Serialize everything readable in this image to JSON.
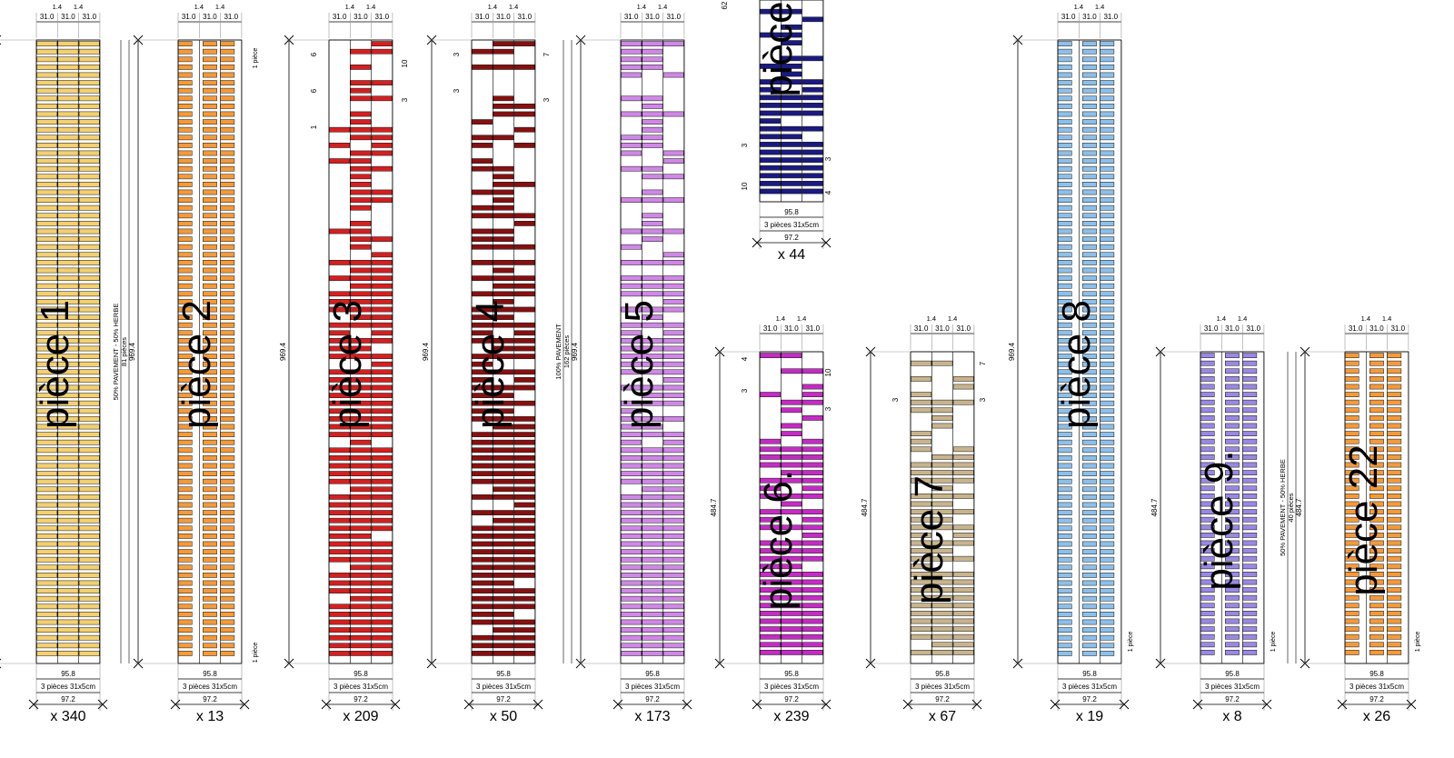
{
  "dimensions": {
    "height_full": "969.4",
    "height_half": "484.7",
    "height_partial": "62",
    "width_inner": "95.8",
    "width_outer": "97.2",
    "column_width": "31.0",
    "joint_width": "1.4",
    "composition": "3 pièces 31x5cm",
    "one_piece": "1 pièce",
    "unit_label": "pièce"
  },
  "notes": {
    "piece_count_162": "162 pièces",
    "piece_count_81": "81 pièces",
    "piece_count_40": "40 pièces",
    "mix_50": "50% PAVEMENT - 50% HERBE",
    "mix_100": "100% PAVEMENT"
  },
  "pieces": [
    {
      "id": "p1",
      "label": "pièce 1",
      "qty": "x 340",
      "color": "#f3d070",
      "fill": "full"
    },
    {
      "id": "p2",
      "label": "pièce 2",
      "qty": "x 13",
      "color": "#f39a3a",
      "fill": "half"
    },
    {
      "id": "p3",
      "label": "pièce 3",
      "qty": "x 209",
      "color": "#d42020",
      "fill": "mixed"
    },
    {
      "id": "p4",
      "label": "pièce 4",
      "qty": "x 50",
      "color": "#861010",
      "fill": "mixed"
    },
    {
      "id": "p5",
      "label": "pièce 5",
      "qty": "x 173",
      "color": "#cf88e6",
      "fill": "mixed"
    },
    {
      "id": "p6top",
      "label": "pièce",
      "qty": "x 44",
      "color": "#1a1a80",
      "fill": "mixed"
    },
    {
      "id": "p6",
      "label": "pièce 6.",
      "qty": "x 239",
      "color": "#c42cc4",
      "fill": "mixed"
    },
    {
      "id": "p7",
      "label": "pièce 7",
      "qty": "x 67",
      "color": "#c8b48c",
      "fill": "mixed"
    },
    {
      "id": "p8",
      "label": "pièce 8",
      "qty": "x 19",
      "color": "#8cc0ea",
      "fill": "half"
    },
    {
      "id": "p9",
      "label": "pièce 9.",
      "qty": "x 8",
      "color": "#9a88e2",
      "fill": "half"
    },
    {
      "id": "p22",
      "label": "pièce 22",
      "qty": "x 26",
      "color": "#f39a3a",
      "fill": "half"
    }
  ],
  "tick_labels": [
    "1",
    "3",
    "4",
    "6",
    "7",
    "10"
  ]
}
